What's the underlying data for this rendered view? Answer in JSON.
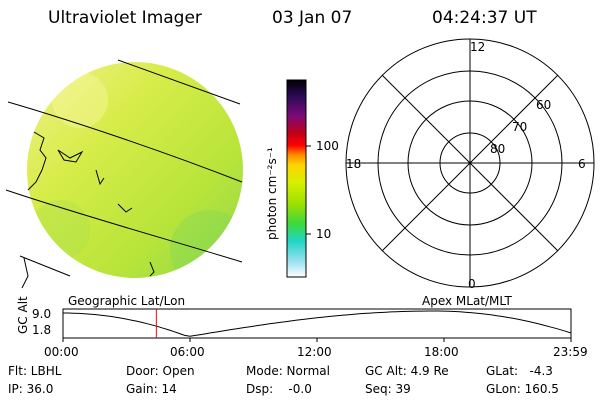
{
  "header": {
    "instrument": "Ultraviolet Imager",
    "date": "03 Jan 07",
    "time": "04:24:37 UT"
  },
  "colorbar": {
    "unit_label": "photon cm⁻²s⁻¹",
    "tick_labels": [
      "100",
      "10"
    ],
    "colors": [
      "#000000",
      "#2a0a55",
      "#7a0a7a",
      "#c0001a",
      "#ff0000",
      "#ff8a00",
      "#ffd200",
      "#d8f000",
      "#9ce000",
      "#3cd83c",
      "#20d6c8",
      "#9ae0f0",
      "#ffffff"
    ]
  },
  "earth_panel": {
    "label": "Geographic Lat/Lon",
    "disk_color": "#c8ec3c"
  },
  "polar_panel": {
    "label": "Apex MLat/MLT",
    "mlt_labels": {
      "top": "12",
      "left": "18",
      "right": "6",
      "bottom": "0"
    },
    "lat_labels": [
      "60",
      "70",
      "80"
    ]
  },
  "altitude_plot": {
    "ylabel": "GC Alt",
    "ytick_labels": [
      "9.0",
      "1.8"
    ],
    "xtick_labels": [
      "00:00",
      "06:00",
      "12:00",
      "18:00",
      "23:59"
    ],
    "current_time_marker_color": "#ff0000",
    "current_time_hours": 4.41
  },
  "status": {
    "filter": "Flt: LBHL",
    "ip": "IP: 36.0",
    "door": "Door: Open",
    "gain": "Gain: 14",
    "mode": "Mode: Normal",
    "dsp": "Dsp:    -0.0",
    "gc_alt": "GC Alt: 4.9 Re",
    "seq": "Seq: 39",
    "glat": "GLat:   -4.3",
    "glon": "GLon: 160.5"
  }
}
